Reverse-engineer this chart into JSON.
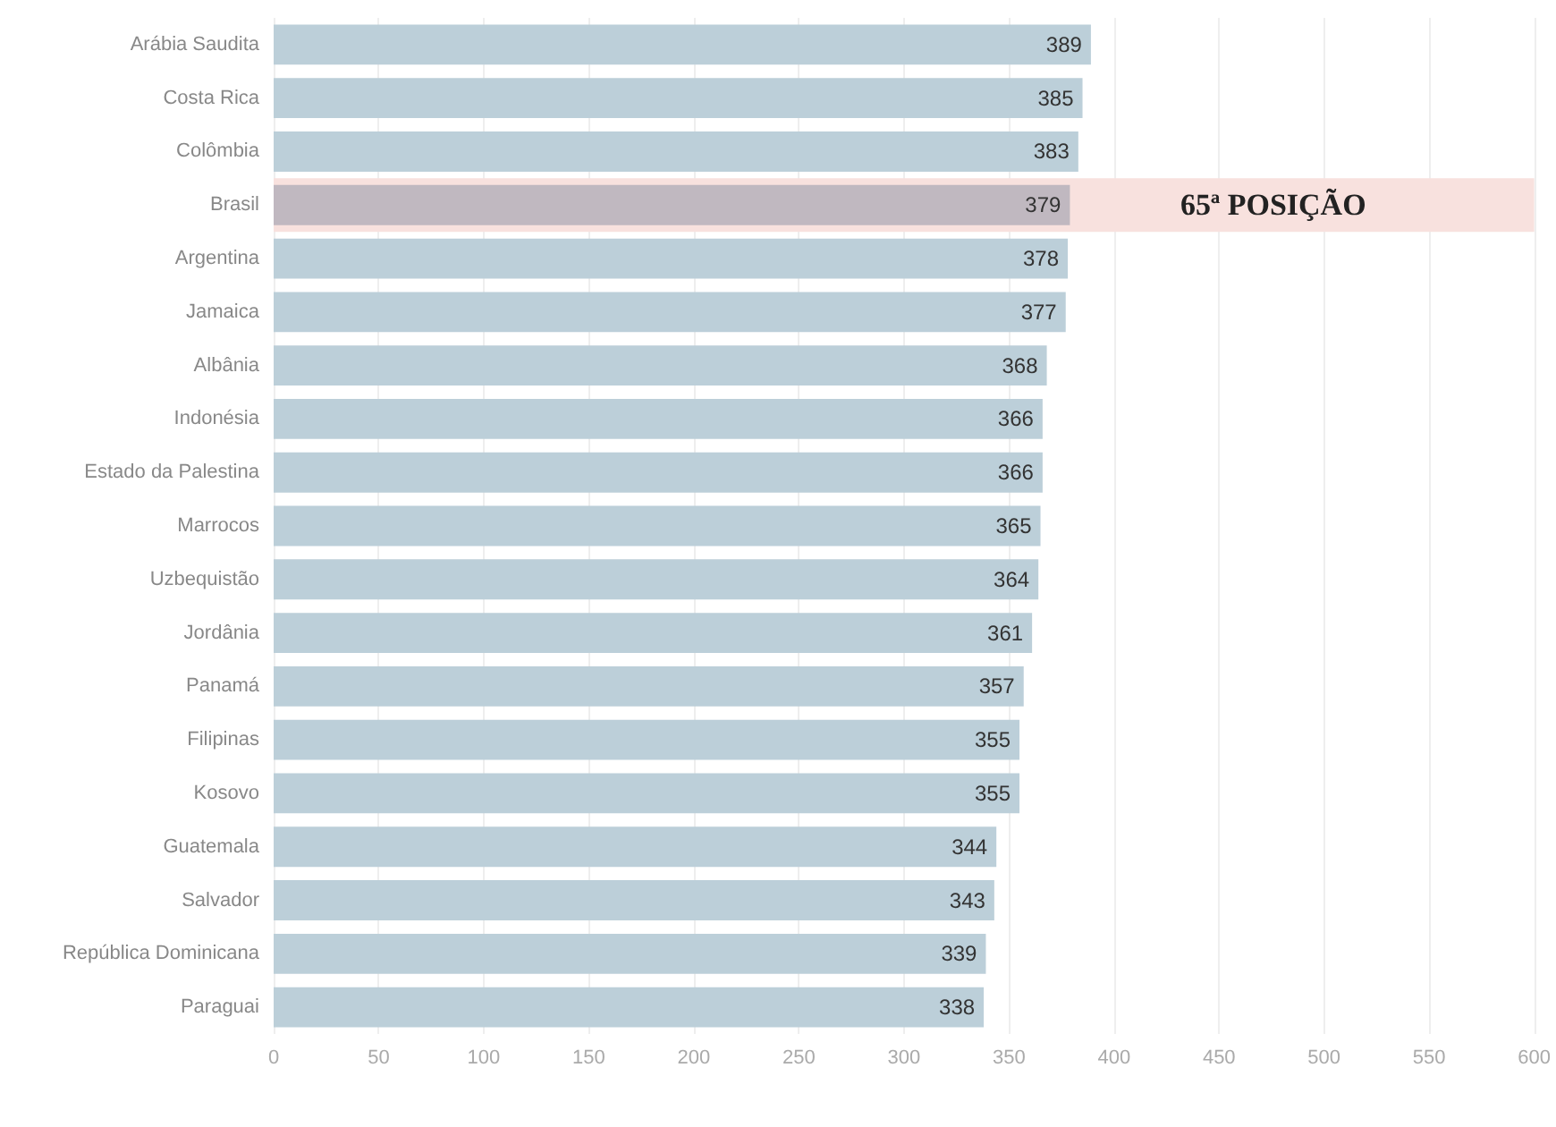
{
  "chart_data": {
    "type": "bar",
    "orientation": "horizontal",
    "categories": [
      "Arábia Saudita",
      "Costa Rica",
      "Colômbia",
      "Brasil",
      "Argentina",
      "Jamaica",
      "Albânia",
      "Indonésia",
      "Estado da Palestina",
      "Marrocos",
      "Uzbequistão",
      "Jordânia",
      "Panamá",
      "Filipinas",
      "Kosovo",
      "Guatemala",
      "Salvador",
      "República Dominicana",
      "Paraguai"
    ],
    "values": [
      389,
      385,
      383,
      379,
      378,
      377,
      368,
      366,
      366,
      365,
      364,
      361,
      357,
      355,
      355,
      344,
      343,
      339,
      338
    ],
    "colors": [
      "#bccfd9",
      "#bccfd9",
      "#bccfd9",
      "#c0b8c0",
      "#bccfd9",
      "#bccfd9",
      "#bccfd9",
      "#bccfd9",
      "#bccfd9",
      "#bccfd9",
      "#bccfd9",
      "#bccfd9",
      "#bccfd9",
      "#bccfd9",
      "#bccfd9",
      "#bccfd9",
      "#bccfd9",
      "#bccfd9",
      "#bccfd9"
    ],
    "data_labels": true,
    "xlim": [
      0,
      600
    ],
    "xticks": [
      0,
      50,
      100,
      150,
      200,
      250,
      300,
      350,
      400,
      450,
      500,
      550,
      600
    ],
    "grid": "x",
    "bands": [
      {
        "axis": "y",
        "from": "Brasil",
        "to": "Brasil",
        "label": "65ª POSIÇÃO",
        "color": "#f8e1de"
      }
    ]
  }
}
